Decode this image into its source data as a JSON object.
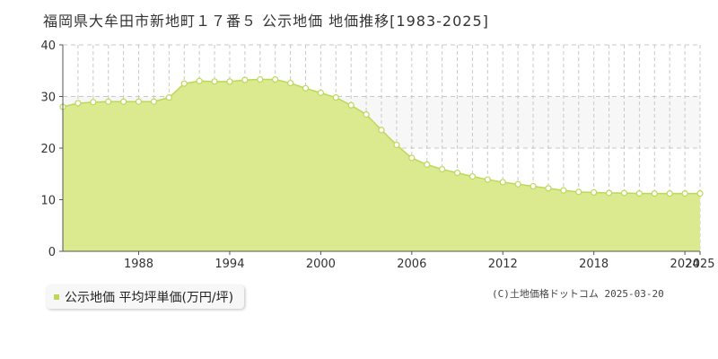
{
  "title": "福岡県大牟田市新地町１７番５ 公示地価 地価推移[1983-2025]",
  "legend": {
    "label": "公示地価 平均坪単価(万円/坪)"
  },
  "copyright": "(C)土地価格ドットコム 2025-03-20",
  "colors": {
    "fill": "#dcea8f",
    "line": "#bcd85a",
    "marker_fill": "#ffffff",
    "grid": "#c8c8c8",
    "band": "#f7f7f7"
  },
  "chart_data": {
    "type": "area",
    "series": [
      {
        "name": "公示地価 平均坪単価(万円/坪)",
        "x": [
          1983,
          1984,
          1985,
          1986,
          1987,
          1988,
          1989,
          1990,
          1991,
          1992,
          1993,
          1994,
          1995,
          1996,
          1997,
          1998,
          1999,
          2000,
          2001,
          2002,
          2003,
          2004,
          2005,
          2006,
          2007,
          2008,
          2009,
          2010,
          2011,
          2012,
          2013,
          2014,
          2015,
          2016,
          2017,
          2018,
          2019,
          2020,
          2021,
          2022,
          2023,
          2024,
          2025
        ],
        "values": [
          28.0,
          28.7,
          28.9,
          29.0,
          29.0,
          29.0,
          29.0,
          29.8,
          32.5,
          33.0,
          32.9,
          32.9,
          33.2,
          33.3,
          33.3,
          32.6,
          31.6,
          30.7,
          29.8,
          28.3,
          26.5,
          23.5,
          20.6,
          18.1,
          16.8,
          15.9,
          15.2,
          14.5,
          13.9,
          13.4,
          13.0,
          12.6,
          12.2,
          11.8,
          11.5,
          11.4,
          11.3,
          11.3,
          11.2,
          11.2,
          11.2,
          11.2,
          11.2
        ]
      }
    ],
    "x_ticks": [
      "1988",
      "1994",
      "2000",
      "2006",
      "2012",
      "2018",
      "2024",
      "2025"
    ],
    "y_ticks": [
      "0",
      "10",
      "20",
      "30",
      "40"
    ],
    "xlim": [
      1983,
      2025
    ],
    "ylim": [
      0,
      40
    ],
    "grid": true,
    "legend_position": "bottom-left"
  }
}
